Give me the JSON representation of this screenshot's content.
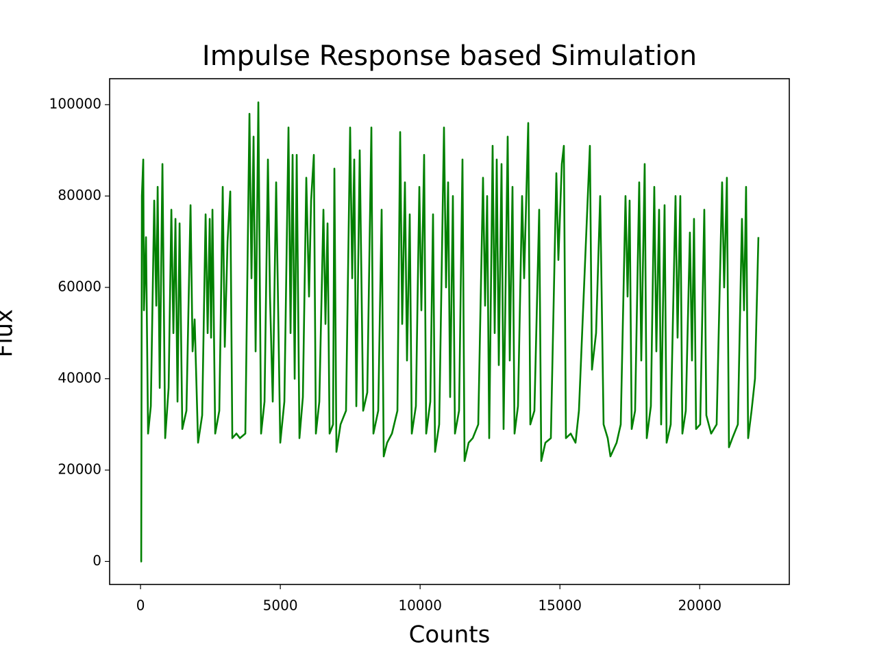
{
  "chart_data": {
    "type": "line",
    "title": "Impulse Response based Simulation",
    "x_label": "Counts",
    "y_label": "Flux",
    "xlim": [
      -1105,
      23204
    ],
    "ylim": [
      -5032,
      105682
    ],
    "xticks": [
      0,
      5000,
      10000,
      15000,
      20000
    ],
    "yticks": [
      0,
      20000,
      40000,
      60000,
      80000,
      100000
    ],
    "series": [
      {
        "color": "#008000",
        "x": [
          0,
          25,
          49,
          98,
          123,
          196,
          270,
          368,
          490,
          564,
          613,
          686,
          784,
          882,
          1005,
          1103,
          1176,
          1250,
          1323,
          1397,
          1495,
          1642,
          1789,
          1862,
          1936,
          2058,
          2205,
          2328,
          2401,
          2475,
          2524,
          2573,
          2671,
          2818,
          2940,
          3014,
          3112,
          3210,
          3283,
          3430,
          3553,
          3749,
          3896,
          3969,
          4043,
          4116,
          4214,
          4312,
          4435,
          4557,
          4631,
          4729,
          4851,
          4998,
          5145,
          5292,
          5366,
          5439,
          5513,
          5586,
          5684,
          5807,
          5929,
          6027,
          6101,
          6199,
          6272,
          6395,
          6542,
          6615,
          6689,
          6762,
          6885,
          6934,
          7007,
          7154,
          7350,
          7497,
          7571,
          7644,
          7718,
          7840,
          7963,
          8110,
          8257,
          8330,
          8502,
          8624,
          8698,
          8820,
          8992,
          9188,
          9286,
          9359,
          9457,
          9531,
          9629,
          9702,
          9849,
          9972,
          10045,
          10143,
          10217,
          10364,
          10462,
          10535,
          10682,
          10854,
          10927,
          11001,
          11074,
          11172,
          11246,
          11393,
          11515,
          11589,
          11736,
          11883,
          12079,
          12250,
          12324,
          12397,
          12471,
          12593,
          12667,
          12740,
          12814,
          12912,
          12985,
          13132,
          13206,
          13304,
          13377,
          13500,
          13647,
          13720,
          13867,
          13941,
          14088,
          14259,
          14333,
          14480,
          14676,
          14872,
          14945,
          15068,
          15141,
          15215,
          15386,
          15558,
          15680,
          16072,
          16146,
          16293,
          16440,
          16562,
          16709,
          16807,
          17028,
          17175,
          17346,
          17420,
          17493,
          17567,
          17689,
          17836,
          17910,
          18032,
          18106,
          18253,
          18375,
          18449,
          18547,
          18620,
          18743,
          18816,
          18963,
          19135,
          19208,
          19306,
          19380,
          19502,
          19649,
          19723,
          19796,
          19870,
          20017,
          20164,
          20237,
          20409,
          20605,
          20801,
          20874,
          20972,
          21046,
          21168,
          21364,
          21511,
          21585,
          21658,
          21732,
          21854,
          21977,
          22099
        ],
        "values": [
          0,
          0,
          80000,
          88000,
          55000,
          71000,
          28000,
          34000,
          79000,
          56000,
          82000,
          38000,
          87000,
          27000,
          38000,
          77000,
          50000,
          75000,
          35000,
          74000,
          29000,
          33000,
          78000,
          46000,
          53000,
          26000,
          32000,
          76000,
          50000,
          75000,
          49000,
          77000,
          28000,
          33000,
          82000,
          47000,
          70000,
          81000,
          27000,
          28000,
          27000,
          28000,
          98000,
          62000,
          93000,
          46000,
          100500,
          28000,
          35000,
          88000,
          58000,
          35000,
          83000,
          26000,
          35000,
          95000,
          50000,
          89000,
          40000,
          89000,
          27000,
          36000,
          84000,
          58000,
          79000,
          89000,
          28000,
          35000,
          77000,
          52000,
          74000,
          28000,
          30000,
          86000,
          24000,
          30000,
          33000,
          95000,
          62000,
          88000,
          34000,
          90000,
          33000,
          37000,
          95000,
          28000,
          33000,
          77000,
          23000,
          26000,
          28000,
          33000,
          94000,
          52000,
          83000,
          44000,
          76000,
          28000,
          34000,
          82000,
          55000,
          89000,
          28000,
          35000,
          76000,
          24000,
          30000,
          95000,
          60000,
          83000,
          36000,
          80000,
          28000,
          33000,
          88000,
          22000,
          26000,
          27000,
          30000,
          84000,
          56000,
          80000,
          27000,
          91000,
          50000,
          88000,
          43000,
          87000,
          29000,
          93000,
          44000,
          82000,
          28000,
          34000,
          80000,
          62000,
          96000,
          30000,
          33000,
          77000,
          22000,
          26000,
          27000,
          85000,
          66000,
          87000,
          91000,
          27000,
          28000,
          26000,
          33000,
          91000,
          42000,
          50000,
          80000,
          30000,
          27000,
          23000,
          26000,
          30000,
          80000,
          58000,
          79000,
          29000,
          33000,
          83000,
          44000,
          87000,
          27000,
          34000,
          82000,
          46000,
          77000,
          30000,
          78000,
          26000,
          30000,
          80000,
          49000,
          80000,
          28000,
          33000,
          72000,
          44000,
          75000,
          29000,
          30000,
          77000,
          32000,
          28000,
          30000,
          83000,
          60000,
          84000,
          25000,
          27000,
          30000,
          75000,
          55000,
          82000,
          27000,
          33000,
          40000,
          71000
        ]
      }
    ]
  }
}
